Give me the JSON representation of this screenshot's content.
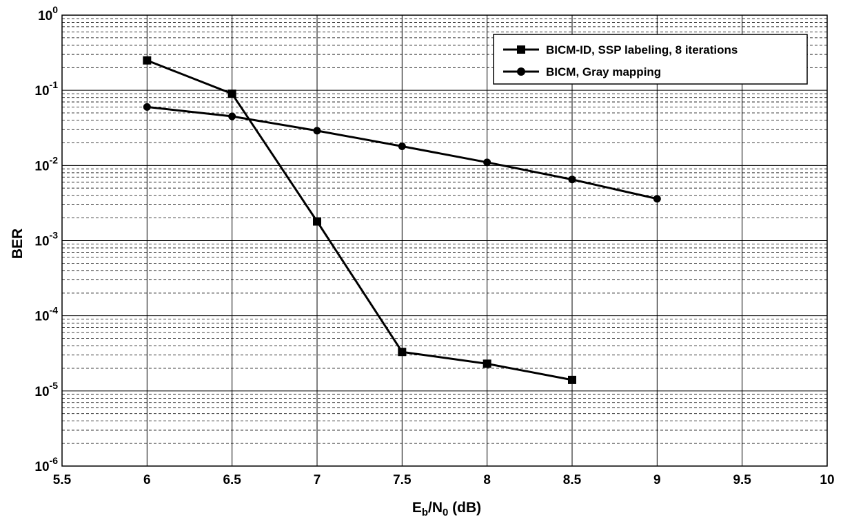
{
  "chart_data": {
    "type": "line",
    "title": "",
    "xlabel": {
      "main": "E",
      "sub1": "b",
      "mid": "/N",
      "sub2": "0",
      "tail": " (dB)"
    },
    "ylabel": "BER",
    "xlim": [
      5.5,
      10
    ],
    "ylim": [
      1e-06,
      1
    ],
    "yscale": "log",
    "grid": true,
    "legend_position": "top-right",
    "x_ticks": [
      "5.5",
      "6",
      "6.5",
      "7",
      "7.5",
      "8",
      "8.5",
      "9",
      "9.5",
      "10"
    ],
    "y_ticks": [
      {
        "base": "10",
        "exp": "0"
      },
      {
        "base": "10",
        "exp": "-1"
      },
      {
        "base": "10",
        "exp": "-2"
      },
      {
        "base": "10",
        "exp": "-3"
      },
      {
        "base": "10",
        "exp": "-4"
      },
      {
        "base": "10",
        "exp": "-5"
      },
      {
        "base": "10",
        "exp": "-6"
      }
    ],
    "series": [
      {
        "name": "BICM-ID, SSP labeling, 8 iterations",
        "marker": "square",
        "color": "#000000",
        "x": [
          6,
          6.5,
          7,
          7.5,
          8,
          8.5
        ],
        "y": [
          0.25,
          0.09,
          0.0018,
          3.3e-05,
          2.3e-05,
          1.4e-05
        ]
      },
      {
        "name": "BICM, Gray mapping",
        "marker": "circle",
        "color": "#000000",
        "x": [
          6,
          6.5,
          7,
          7.5,
          8,
          8.5,
          9
        ],
        "y": [
          0.06,
          0.045,
          0.029,
          0.018,
          0.011,
          0.0065,
          0.0036
        ]
      }
    ]
  }
}
